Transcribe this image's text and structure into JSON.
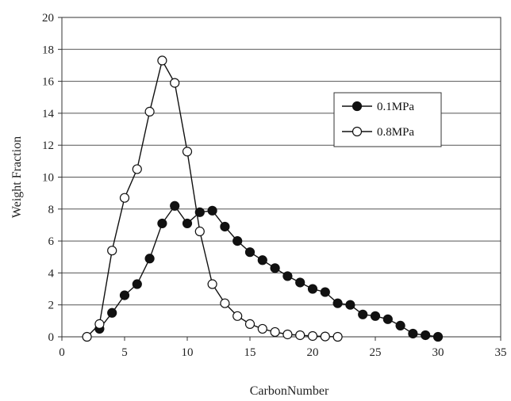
{
  "chart_data": {
    "type": "line",
    "xlabel": "CarbonNumber",
    "ylabel": "Weight Fraction",
    "xlim": [
      0,
      35
    ],
    "ylim": [
      0,
      20
    ],
    "xticks": [
      0,
      5,
      10,
      15,
      20,
      25,
      30,
      35
    ],
    "yticks": [
      0,
      2,
      4,
      6,
      8,
      10,
      12,
      14,
      16,
      18,
      20
    ],
    "grid": "horizontal",
    "legend_position": "right",
    "series": [
      {
        "name": "0.1MPa",
        "marker": "filled-circle",
        "x": [
          3,
          4,
          5,
          6,
          7,
          8,
          9,
          10,
          11,
          12,
          13,
          14,
          15,
          16,
          17,
          18,
          19,
          20,
          21,
          22,
          23,
          24,
          25,
          26,
          27,
          28,
          29,
          30
        ],
        "y": [
          0.5,
          1.5,
          2.6,
          3.3,
          4.9,
          7.1,
          8.2,
          7.1,
          7.8,
          7.9,
          6.9,
          6.0,
          5.3,
          4.8,
          4.3,
          3.8,
          3.4,
          3.0,
          2.8,
          2.1,
          2.0,
          1.4,
          1.3,
          1.1,
          0.7,
          0.2,
          0.1,
          0.0
        ]
      },
      {
        "name": "0.8MPa",
        "marker": "open-circle",
        "x": [
          2,
          3,
          4,
          5,
          6,
          7,
          8,
          9,
          10,
          11,
          12,
          13,
          14,
          15,
          16,
          17,
          18,
          19,
          20,
          21,
          22
        ],
        "y": [
          0.0,
          0.8,
          5.4,
          8.7,
          10.5,
          14.1,
          17.3,
          15.9,
          11.6,
          6.6,
          3.3,
          2.1,
          1.3,
          0.8,
          0.5,
          0.3,
          0.15,
          0.1,
          0.05,
          0.02,
          0.0
        ]
      }
    ]
  }
}
